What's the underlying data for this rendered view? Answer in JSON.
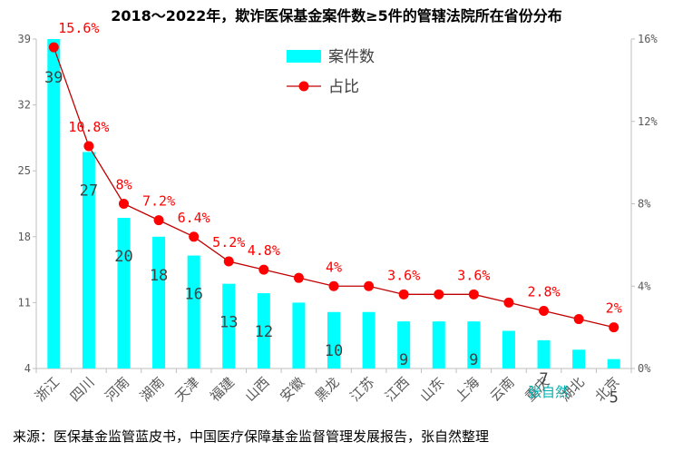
{
  "title": "2018～2022年，欺诈医保基金案件数≥5件的管辖法院所在省份分布",
  "source_note": "来源：医保基金监管蓝皮书，中国医疗保障基金监督管理发展报告，张自然整理",
  "watermark": "张自然",
  "colors": {
    "bar": "#00ffff",
    "line": "#c00000",
    "marker": "#ff0000",
    "label_red": "#ff0000",
    "axis": "#bfbfbf"
  },
  "chart_data": {
    "type": "bar+line",
    "categories": [
      "浙江",
      "四川",
      "河南",
      "湖南",
      "天津",
      "福建",
      "山西",
      "安徽",
      "黑龙",
      "江苏",
      "江西",
      "山东",
      "上海",
      "云南",
      "重庆",
      "湖北",
      "北京"
    ],
    "series": [
      {
        "name": "案件数",
        "type": "bar",
        "axis": "left",
        "values": [
          39,
          27,
          20,
          18,
          16,
          13,
          12,
          11,
          10,
          10,
          9,
          9,
          9,
          8,
          7,
          6,
          5
        ]
      },
      {
        "name": "占比",
        "type": "line",
        "axis": "right",
        "unit": "%",
        "values": [
          15.6,
          10.8,
          8,
          7.2,
          6.4,
          5.2,
          4.8,
          4.4,
          4,
          4,
          3.6,
          3.6,
          3.6,
          3.2,
          2.8,
          2.4,
          2
        ]
      }
    ],
    "bar_labels": [
      {
        "index": 0,
        "text": "39"
      },
      {
        "index": 1,
        "text": "27"
      },
      {
        "index": 2,
        "text": "20"
      },
      {
        "index": 3,
        "text": "18"
      },
      {
        "index": 4,
        "text": "16"
      },
      {
        "index": 5,
        "text": "13"
      },
      {
        "index": 6,
        "text": "12"
      },
      {
        "index": 8,
        "text": "10"
      },
      {
        "index": 10,
        "text": "9"
      },
      {
        "index": 12,
        "text": "9"
      },
      {
        "index": 14,
        "text": "7"
      },
      {
        "index": 16,
        "text": "5"
      }
    ],
    "line_labels": [
      {
        "index": 0,
        "text": "15.6%"
      },
      {
        "index": 1,
        "text": "10.8%"
      },
      {
        "index": 2,
        "text": "8%"
      },
      {
        "index": 3,
        "text": "7.2%"
      },
      {
        "index": 4,
        "text": "6.4%"
      },
      {
        "index": 5,
        "text": "5.2%"
      },
      {
        "index": 6,
        "text": "4.8%"
      },
      {
        "index": 8,
        "text": "4%"
      },
      {
        "index": 10,
        "text": "3.6%"
      },
      {
        "index": 12,
        "text": "3.6%"
      },
      {
        "index": 14,
        "text": "2.8%"
      },
      {
        "index": 16,
        "text": "2%"
      }
    ],
    "left_axis": {
      "min": 4,
      "max": 39,
      "ticks": [
        "4",
        "11",
        "18",
        "25",
        "32",
        "39"
      ]
    },
    "right_axis": {
      "min": 0,
      "max": 16,
      "ticks": [
        "0%",
        "4%",
        "8%",
        "12%",
        "16%"
      ]
    },
    "legend": [
      {
        "label": "案件数"
      },
      {
        "label": "占比"
      }
    ],
    "legend_position": "top-center",
    "grid": false
  }
}
